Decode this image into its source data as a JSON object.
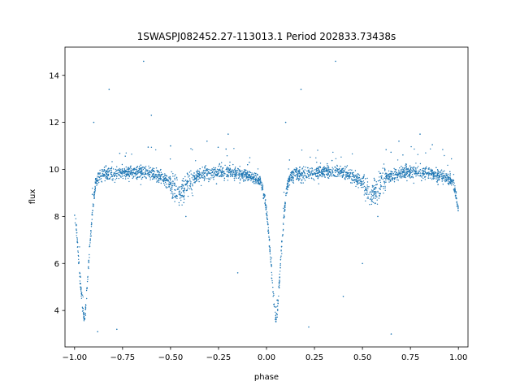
{
  "chart_data": {
    "type": "scatter",
    "title": "1SWASPJ082452.27-113013.1 Period 202833.73438s",
    "xlabel": "phase",
    "ylabel": "flux",
    "xlim": [
      -1.05,
      1.05
    ],
    "ylim": [
      2.45,
      15.2
    ],
    "xticks": [
      -1.0,
      -0.75,
      -0.5,
      -0.25,
      0.0,
      0.25,
      0.5,
      0.75,
      1.0
    ],
    "xtick_labels": [
      "−1.00",
      "−0.75",
      "−0.50",
      "−0.25",
      "0.00",
      "0.25",
      "0.50",
      "0.75",
      "1.00"
    ],
    "yticks": [
      4,
      6,
      8,
      10,
      12,
      14
    ],
    "ytick_labels": [
      "4",
      "6",
      "8",
      "10",
      "12",
      "14"
    ],
    "grid": false,
    "marker_color": "#1f77b4",
    "series": [
      {
        "x": [
          -1.0,
          -0.99,
          -0.98,
          -0.97,
          -0.96,
          -0.955,
          -0.95,
          -0.945,
          -0.94,
          -0.935,
          -0.93,
          -0.92,
          -0.91,
          -0.9,
          -0.89,
          -0.88,
          -0.87,
          -0.86,
          -0.85,
          -0.8,
          -0.75,
          -0.7,
          -0.65,
          -0.6,
          -0.55,
          -0.5,
          -0.47,
          -0.45,
          -0.43,
          -0.4,
          -0.35,
          -0.3,
          -0.25,
          -0.2,
          -0.15,
          -0.1,
          -0.05,
          -0.03,
          -0.02,
          -0.01,
          0.0,
          0.01,
          0.02,
          0.03,
          0.04,
          0.045,
          0.05,
          0.055,
          0.06,
          0.065,
          0.07,
          0.08,
          0.09,
          0.1,
          0.11,
          0.12,
          0.13,
          0.14,
          0.15,
          0.2,
          0.25,
          0.3,
          0.35,
          0.4,
          0.45,
          0.5,
          0.53,
          0.55,
          0.57,
          0.6,
          0.65,
          0.7,
          0.75,
          0.8,
          0.85,
          0.9,
          0.95,
          0.97,
          0.98,
          0.99,
          1.0
        ],
        "y": [
          8.2,
          7.4,
          6.3,
          5.2,
          4.3,
          3.9,
          3.6,
          3.8,
          4.3,
          4.9,
          5.6,
          6.8,
          7.9,
          8.8,
          9.4,
          9.6,
          9.7,
          9.75,
          9.8,
          9.8,
          9.85,
          9.9,
          9.9,
          9.85,
          9.7,
          9.4,
          9.1,
          9.0,
          9.15,
          9.5,
          9.75,
          9.85,
          9.9,
          9.9,
          9.85,
          9.75,
          9.6,
          9.45,
          9.2,
          8.8,
          8.2,
          7.4,
          6.3,
          5.2,
          4.3,
          3.9,
          3.6,
          3.8,
          4.3,
          4.9,
          5.6,
          6.8,
          7.9,
          8.8,
          9.4,
          9.6,
          9.7,
          9.75,
          9.8,
          9.8,
          9.85,
          9.9,
          9.9,
          9.85,
          9.7,
          9.4,
          9.1,
          9.0,
          9.15,
          9.5,
          9.75,
          9.85,
          9.9,
          9.9,
          9.85,
          9.75,
          9.6,
          9.45,
          9.2,
          8.8,
          8.2
        ]
      }
    ],
    "outliers": {
      "x": [
        -0.82,
        -0.64,
        -0.31,
        -0.9,
        -0.2,
        -0.5,
        -0.6,
        -0.42,
        0.18,
        0.36,
        0.69,
        0.8,
        0.1,
        0.58,
        0.5,
        0.4,
        -0.78,
        -0.15,
        0.22,
        0.65,
        -0.88,
        0.12
      ],
      "y": [
        13.4,
        14.6,
        11.2,
        12.0,
        11.5,
        11.0,
        12.3,
        8.0,
        13.4,
        14.6,
        11.2,
        11.5,
        12.0,
        8.0,
        6.0,
        4.6,
        3.2,
        5.6,
        3.3,
        3.0,
        3.1,
        10.4
      ]
    }
  }
}
